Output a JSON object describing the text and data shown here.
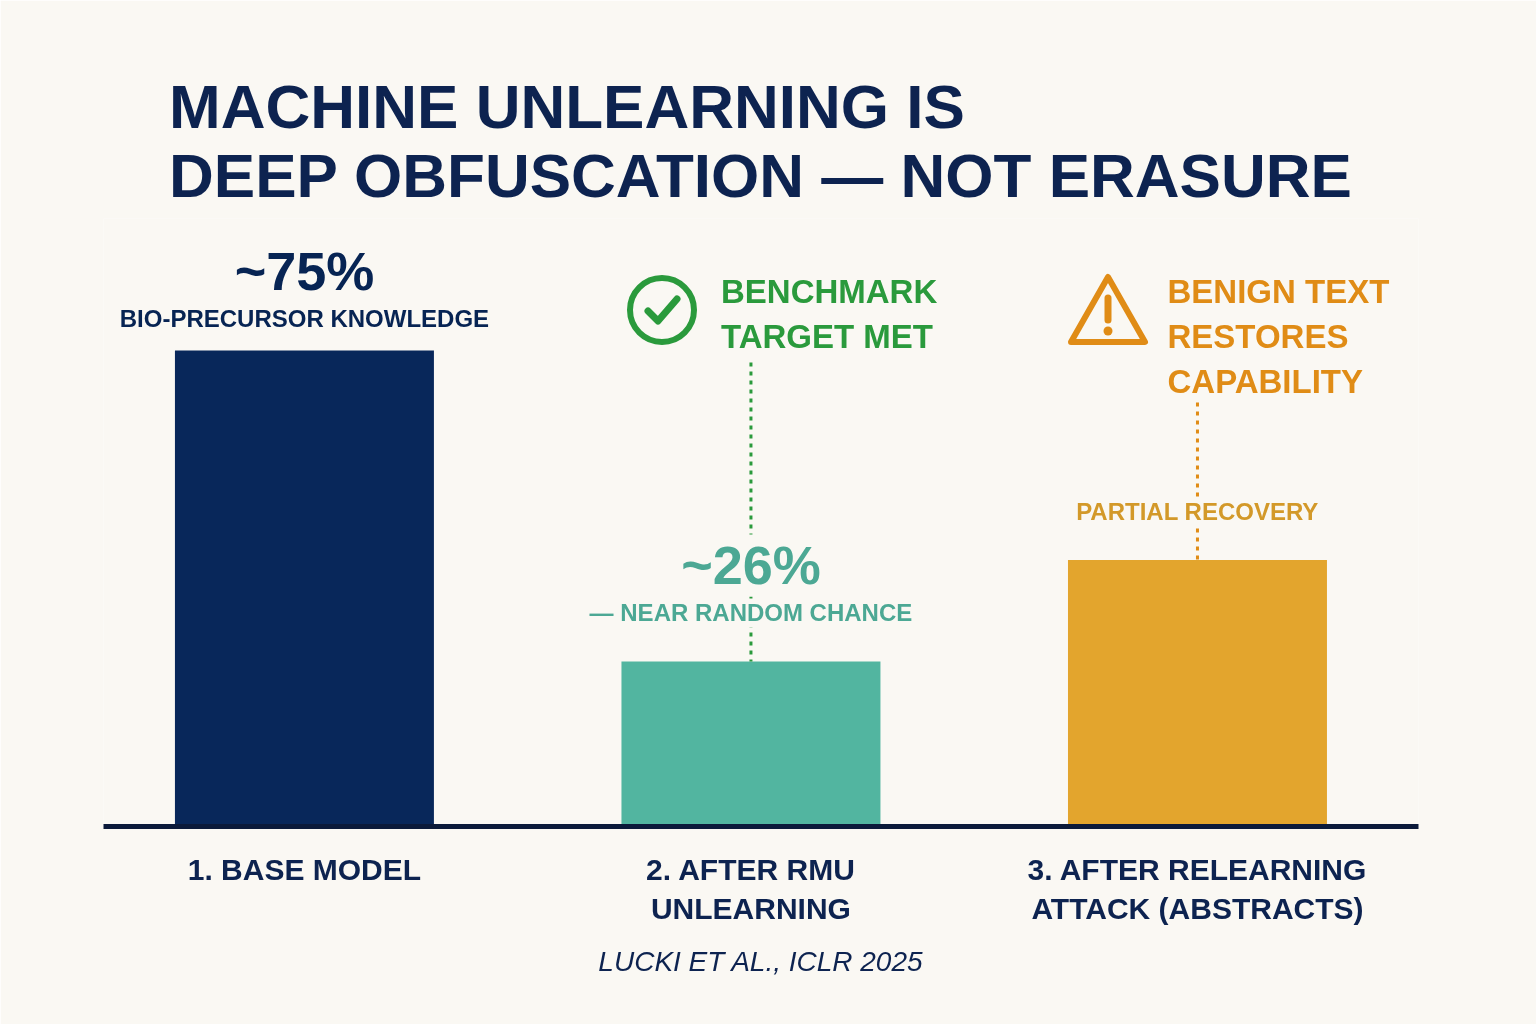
{
  "chart_data": {
    "type": "bar",
    "title": "MACHINE UNLEARNING IS\nDEEP OBFUSCATION — NOT ERASURE",
    "categories": [
      "1. BASE MODEL",
      "2. AFTER RMU\nUNLEARNING",
      "3. AFTER RELEARNING\nATTACK (ABSTRACTS)"
    ],
    "values": [
      75,
      26,
      42
    ],
    "colors": [
      "#08275a",
      "#52b5a0",
      "#e3a52d"
    ],
    "value_labels": [
      "~75%",
      "~26%",
      null
    ],
    "annotations": [
      {
        "text": "BIO-PRECURSOR KNOWLEDGE",
        "x": "1. BASE MODEL",
        "y": 75
      },
      {
        "text": "— NEAR RANDOM CHANCE",
        "x": "2. AFTER RMU\nUNLEARNING",
        "y": 26
      },
      {
        "text": "BENCHMARK\nTARGET MET",
        "x": "2. AFTER RMU\nUNLEARNING",
        "y": 26
      },
      {
        "text": "PARTIAL RECOVERY",
        "x": "3. AFTER RELEARNING\nATTACK (ABSTRACTS)",
        "y": 42
      },
      {
        "text": "BENIGN TEXT\nRESTORES\nCAPABILITY",
        "x": "3. AFTER RELEARNING\nATTACK (ABSTRACTS)",
        "y": 42
      },
      "LUCKI ET AL., ICLR 2025"
    ]
  }
}
